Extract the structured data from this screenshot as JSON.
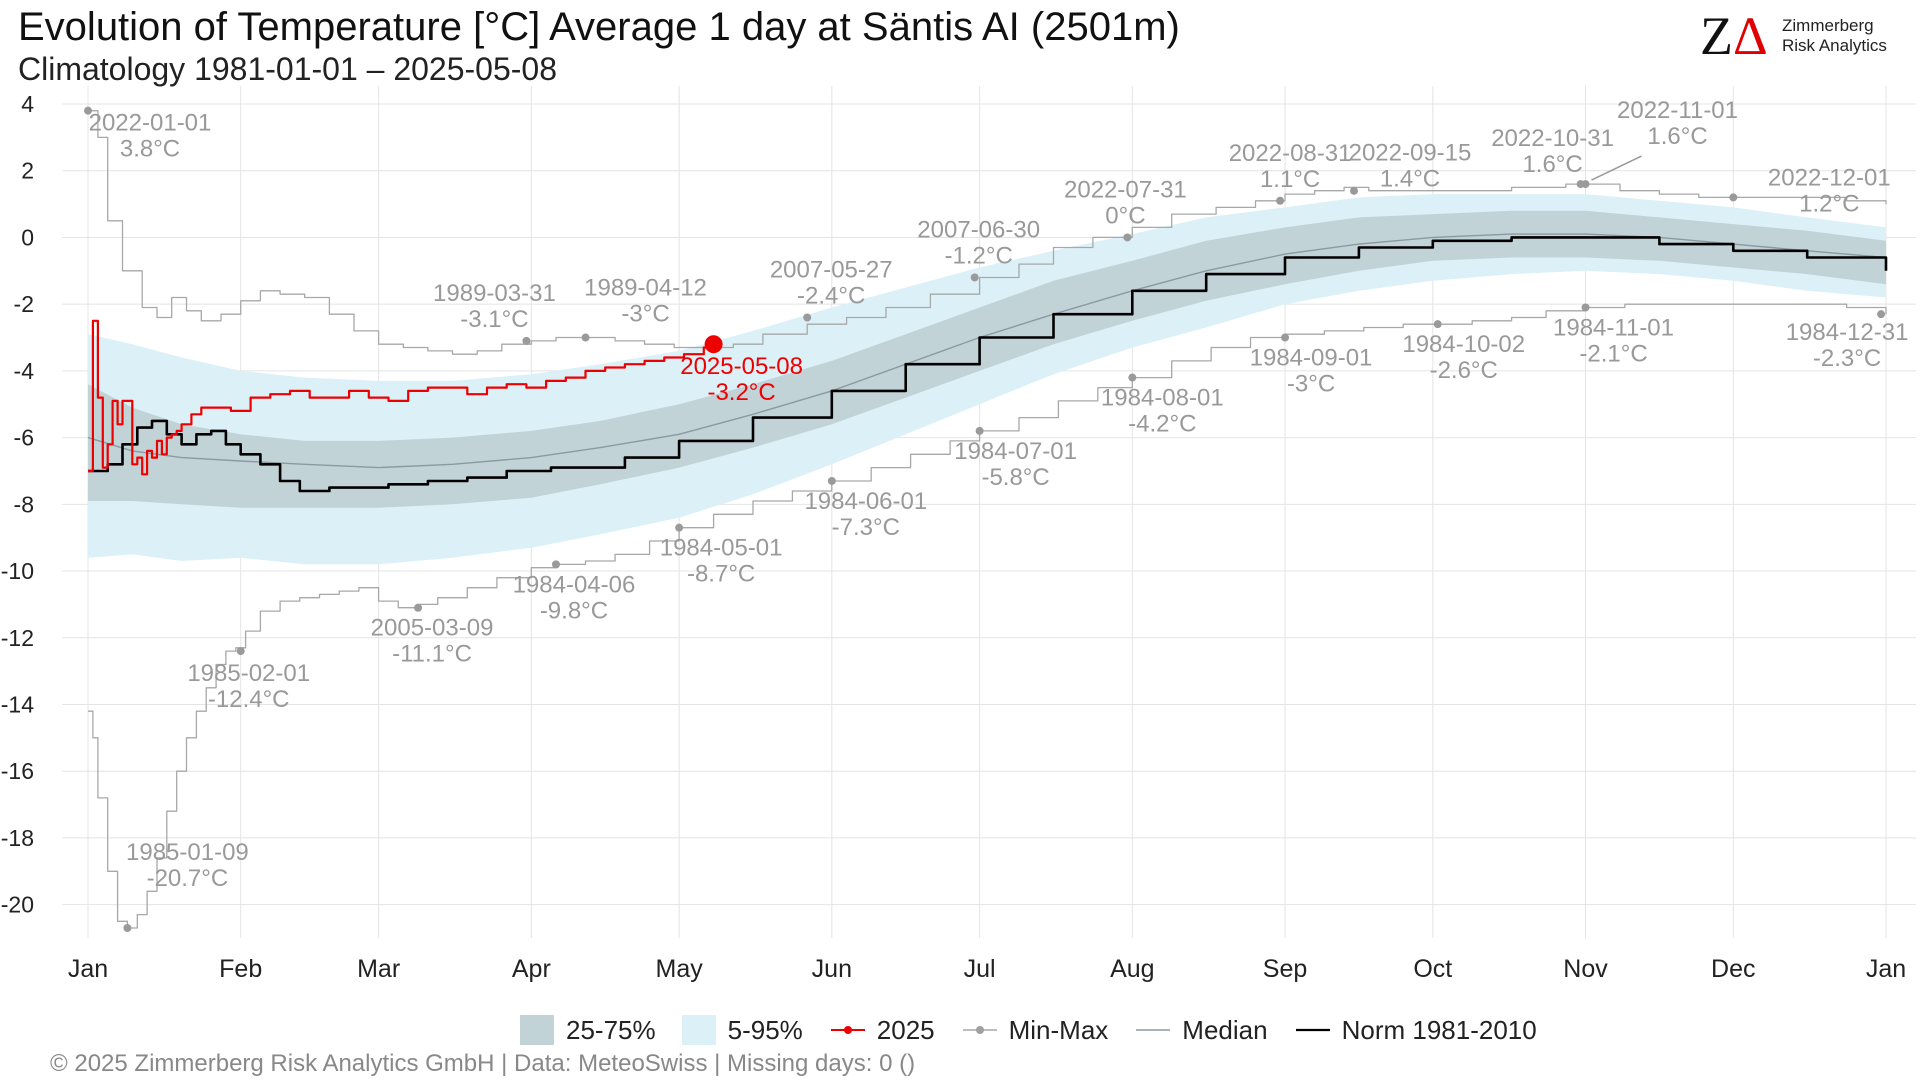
{
  "title": "Evolution of Temperature [°C] Average 1 day at Säntis  AI (2501m)",
  "subtitle": "Climatology 1981-01-01 – 2025-05-08",
  "logo": {
    "mark_z": "Z",
    "mark_delta": "Δ",
    "line1": "Zimmerberg",
    "line2": "Risk Analytics"
  },
  "footer": "©  2025 Zimmerberg Risk Analytics GmbH | Data: MeteoSwiss | Missing days: 0 ()",
  "legend": {
    "iqr": "25-75%",
    "p5_95": "5-95%",
    "current": "2025",
    "minmax": "Min-Max",
    "median": "Median",
    "norm": "Norm 1981-2010"
  },
  "colors": {
    "band_iqr": "#c2d3d8",
    "band_5_95": "#dcf0f8",
    "current": "#ee0000",
    "minmax": "#a8a8a8",
    "median": "#8a9aa0",
    "norm": "#000000",
    "grid": "#e4e4e4",
    "annotation": "#999999"
  },
  "chart_data": {
    "type": "line",
    "x_unit": "day of year",
    "xlim": [
      1,
      366
    ],
    "ylim": [
      -21,
      4.3
    ],
    "y_ticks": [
      4,
      2,
      0,
      -2,
      -4,
      -6,
      -8,
      -10,
      -12,
      -14,
      -16,
      -18,
      -20
    ],
    "x_ticks": [
      {
        "label": "Jan",
        "day": 1
      },
      {
        "label": "Feb",
        "day": 32
      },
      {
        "label": "Mar",
        "day": 60
      },
      {
        "label": "Apr",
        "day": 91
      },
      {
        "label": "May",
        "day": 121
      },
      {
        "label": "Jun",
        "day": 152
      },
      {
        "label": "Jul",
        "day": 182
      },
      {
        "label": "Aug",
        "day": 213
      },
      {
        "label": "Sep",
        "day": 244
      },
      {
        "label": "Oct",
        "day": 274
      },
      {
        "label": "Nov",
        "day": 305
      },
      {
        "label": "Dec",
        "day": 335
      },
      {
        "label": "Jan",
        "day": 366
      }
    ],
    "grid": true,
    "band_5_95": {
      "x": [
        1,
        10,
        20,
        32,
        45,
        60,
        75,
        91,
        105,
        121,
        136,
        152,
        167,
        182,
        197,
        213,
        228,
        244,
        259,
        274,
        290,
        305,
        320,
        335,
        350,
        366
      ],
      "lower": [
        -9.6,
        -9.5,
        -9.7,
        -9.6,
        -9.8,
        -9.8,
        -9.6,
        -9.3,
        -8.9,
        -8.4,
        -7.7,
        -6.8,
        -5.9,
        -5.0,
        -4.1,
        -3.3,
        -2.7,
        -2.0,
        -1.6,
        -1.3,
        -1.1,
        -1.0,
        -1.1,
        -1.3,
        -1.6,
        -1.8
      ],
      "upper": [
        -2.9,
        -3.2,
        -3.6,
        -4.0,
        -4.2,
        -4.3,
        -4.3,
        -4.1,
        -3.8,
        -3.4,
        -2.8,
        -2.1,
        -1.5,
        -0.9,
        -0.4,
        0.1,
        0.6,
        0.9,
        1.2,
        1.3,
        1.3,
        1.3,
        1.1,
        0.9,
        0.6,
        0.3
      ]
    },
    "band_iqr": {
      "x": [
        1,
        10,
        20,
        32,
        45,
        60,
        75,
        91,
        105,
        121,
        136,
        152,
        167,
        182,
        197,
        213,
        228,
        244,
        259,
        274,
        290,
        305,
        320,
        335,
        350,
        366
      ],
      "lower": [
        -7.9,
        -7.9,
        -8.0,
        -8.1,
        -8.1,
        -8.1,
        -8.0,
        -7.8,
        -7.4,
        -6.9,
        -6.3,
        -5.6,
        -4.8,
        -4.0,
        -3.2,
        -2.5,
        -1.9,
        -1.4,
        -1.0,
        -0.7,
        -0.6,
        -0.6,
        -0.7,
        -0.9,
        -1.1,
        -1.4
      ],
      "upper": [
        -4.4,
        -5.1,
        -5.6,
        -5.9,
        -6.1,
        -6.1,
        -6.0,
        -5.8,
        -5.5,
        -5.0,
        -4.4,
        -3.7,
        -2.9,
        -2.1,
        -1.3,
        -0.7,
        -0.1,
        0.3,
        0.6,
        0.7,
        0.8,
        0.8,
        0.6,
        0.4,
        0.2,
        -0.1
      ]
    },
    "series": [
      {
        "name": "Median",
        "x": [
          1,
          10,
          20,
          32,
          45,
          60,
          75,
          91,
          105,
          121,
          136,
          152,
          167,
          182,
          197,
          213,
          228,
          244,
          259,
          274,
          290,
          305,
          320,
          335,
          350,
          366
        ],
        "y": [
          -6.0,
          -6.4,
          -6.6,
          -6.7,
          -6.8,
          -6.9,
          -6.8,
          -6.6,
          -6.3,
          -5.9,
          -5.3,
          -4.6,
          -3.8,
          -3.0,
          -2.3,
          -1.6,
          -1.0,
          -0.5,
          -0.2,
          0.0,
          0.1,
          0.1,
          0.0,
          -0.2,
          -0.4,
          -0.6
        ]
      },
      {
        "name": "Norm 1981-2010",
        "x": [
          1,
          5,
          8,
          11,
          14,
          17,
          20,
          23,
          26,
          29,
          32,
          36,
          40,
          44,
          50,
          56,
          62,
          70,
          78,
          86,
          95,
          102,
          110,
          121,
          136,
          152,
          167,
          182,
          197,
          213,
          228,
          244,
          259,
          274,
          290,
          305,
          320,
          335,
          350,
          366
        ],
        "y": [
          -7.0,
          -6.8,
          -6.2,
          -5.7,
          -5.5,
          -5.9,
          -6.2,
          -5.9,
          -5.8,
          -6.2,
          -6.5,
          -6.8,
          -7.3,
          -7.6,
          -7.5,
          -7.5,
          -7.4,
          -7.3,
          -7.2,
          -7.0,
          -6.9,
          -6.9,
          -6.6,
          -6.1,
          -5.4,
          -4.6,
          -3.8,
          -3.0,
          -2.3,
          -1.6,
          -1.1,
          -0.6,
          -0.3,
          -0.1,
          0.0,
          0.0,
          -0.2,
          -0.4,
          -0.6,
          -1.0
        ]
      },
      {
        "name": "2025",
        "x": [
          1,
          2,
          3,
          4,
          5,
          6,
          7,
          8,
          10,
          11,
          12,
          13,
          14,
          15,
          16,
          17,
          18,
          19,
          20,
          22,
          24,
          26,
          28,
          30,
          34,
          38,
          42,
          46,
          50,
          54,
          58,
          62,
          66,
          70,
          74,
          78,
          82,
          86,
          90,
          94,
          98,
          102,
          106,
          110,
          114,
          118,
          122,
          126,
          128
        ],
        "y": [
          -7.0,
          -2.5,
          -4.8,
          -6.9,
          -6.2,
          -4.9,
          -5.6,
          -4.9,
          -6.8,
          -6.6,
          -7.1,
          -6.4,
          -6.6,
          -6.1,
          -6.5,
          -6.0,
          -5.9,
          -5.8,
          -5.6,
          -5.3,
          -5.1,
          -5.1,
          -5.1,
          -5.2,
          -4.8,
          -4.7,
          -4.6,
          -4.8,
          -4.8,
          -4.6,
          -4.8,
          -4.9,
          -4.6,
          -4.5,
          -4.5,
          -4.7,
          -4.5,
          -4.4,
          -4.5,
          -4.3,
          -4.2,
          -4.0,
          -3.9,
          -3.8,
          -3.7,
          -3.6,
          -3.5,
          -3.3,
          -3.2
        ]
      },
      {
        "name": "Max",
        "x": [
          1,
          3,
          5,
          8,
          12,
          15,
          18,
          21,
          24,
          28,
          32,
          36,
          40,
          45,
          50,
          55,
          60,
          65,
          70,
          75,
          80,
          85,
          91,
          96,
          102,
          108,
          114,
          120,
          126,
          132,
          138,
          147,
          155,
          163,
          172,
          182,
          190,
          197,
          205,
          213,
          221,
          230,
          238,
          244,
          250,
          256,
          261,
          270,
          280,
          290,
          301,
          305,
          312,
          320,
          328,
          335,
          342,
          350,
          358,
          366
        ],
        "y": [
          3.8,
          3.0,
          0.5,
          -1.0,
          -2.1,
          -2.4,
          -1.8,
          -2.2,
          -2.5,
          -2.3,
          -1.9,
          -1.6,
          -1.7,
          -1.8,
          -2.3,
          -2.8,
          -3.2,
          -3.3,
          -3.4,
          -3.5,
          -3.4,
          -3.2,
          -3.1,
          -3.0,
          -3.0,
          -3.1,
          -3.2,
          -3.3,
          -3.3,
          -3.2,
          -2.9,
          -2.6,
          -2.4,
          -2.1,
          -1.7,
          -1.2,
          -0.8,
          -0.3,
          0.0,
          0.3,
          0.7,
          0.9,
          1.1,
          1.3,
          1.4,
          1.5,
          1.4,
          1.4,
          1.4,
          1.5,
          1.6,
          1.6,
          1.4,
          1.3,
          1.2,
          1.2,
          1.2,
          1.2,
          1.1,
          1.0
        ]
      },
      {
        "name": "Min",
        "x": [
          1,
          2,
          3,
          5,
          7,
          9,
          11,
          13,
          15,
          17,
          19,
          21,
          23,
          25,
          27,
          29,
          31,
          33,
          36,
          40,
          44,
          48,
          52,
          56,
          60,
          64,
          68,
          72,
          78,
          84,
          91,
          96,
          102,
          108,
          115,
          121,
          128,
          136,
          144,
          152,
          160,
          168,
          176,
          182,
          190,
          198,
          206,
          213,
          221,
          229,
          237,
          244,
          252,
          260,
          268,
          275,
          282,
          290,
          297,
          305,
          313,
          320,
          327,
          335,
          342,
          350,
          358,
          366
        ],
        "y": [
          -14.2,
          -15.0,
          -16.8,
          -19.0,
          -20.5,
          -20.7,
          -20.3,
          -19.6,
          -18.6,
          -17.2,
          -16.0,
          -15.0,
          -14.2,
          -13.5,
          -12.8,
          -12.4,
          -12.3,
          -11.8,
          -11.2,
          -10.9,
          -10.8,
          -10.7,
          -10.6,
          -10.5,
          -10.9,
          -11.1,
          -11.0,
          -10.8,
          -10.5,
          -10.2,
          -9.9,
          -9.8,
          -9.7,
          -9.5,
          -9.1,
          -8.7,
          -8.3,
          -7.9,
          -7.6,
          -7.3,
          -6.9,
          -6.5,
          -6.1,
          -5.8,
          -5.4,
          -4.9,
          -4.5,
          -4.2,
          -3.7,
          -3.3,
          -3.0,
          -2.9,
          -2.8,
          -2.7,
          -2.6,
          -2.6,
          -2.5,
          -2.4,
          -2.2,
          -2.1,
          -2.0,
          -2.0,
          -2.0,
          -2.0,
          -2.0,
          -2.0,
          -2.1,
          -2.3
        ]
      }
    ],
    "current_point": {
      "day": 128,
      "value": -3.2,
      "label_date": "2025-05-08",
      "label_value": "-3.2°C"
    },
    "extreme_points": [
      {
        "day": 1,
        "value": 3.8,
        "date": "2022-01-01",
        "text": "3.8°C",
        "dx": 62,
        "dy": 20,
        "anchor": "middle"
      },
      {
        "day": 9,
        "value": -20.7,
        "date": "1985-01-09",
        "text": "-20.7°C",
        "dx": 60,
        "dy": -68,
        "anchor": "middle"
      },
      {
        "day": 32,
        "value": -12.4,
        "date": "1985-02-01",
        "text": "-12.4°C",
        "dx": 8,
        "dy": 30,
        "anchor": "middle"
      },
      {
        "day": 68,
        "value": -11.1,
        "date": "2005-03-09",
        "text": "-11.1°C",
        "dx": 14,
        "dy": 28,
        "anchor": "middle"
      },
      {
        "day": 90,
        "value": -3.1,
        "date": "1989-03-31",
        "text": "-3.1°C",
        "dx": -32,
        "dy": -40,
        "anchor": "middle"
      },
      {
        "day": 96,
        "value": -9.8,
        "date": "1984-04-06",
        "text": "-9.8°C",
        "dx": 18,
        "dy": 28,
        "anchor": "middle"
      },
      {
        "day": 102,
        "value": -3.0,
        "date": "1989-04-12",
        "text": "-3°C",
        "dx": 60,
        "dy": -42,
        "anchor": "middle"
      },
      {
        "day": 121,
        "value": -8.7,
        "date": "1984-05-01",
        "text": "-8.7°C",
        "dx": 42,
        "dy": 28,
        "anchor": "middle"
      },
      {
        "day": 147,
        "value": -2.4,
        "date": "2007-05-27",
        "text": "-2.4°C",
        "dx": 24,
        "dy": -40,
        "anchor": "middle"
      },
      {
        "day": 152,
        "value": -7.3,
        "date": "1984-06-01",
        "text": "-7.3°C",
        "dx": 34,
        "dy": 28,
        "anchor": "middle"
      },
      {
        "day": 181,
        "value": -1.2,
        "date": "2007-06-30",
        "text": "-1.2°C",
        "dx": 4,
        "dy": -40,
        "anchor": "middle"
      },
      {
        "day": 182,
        "value": -5.8,
        "date": "1984-07-01",
        "text": "-5.8°C",
        "dx": 36,
        "dy": 28,
        "anchor": "middle"
      },
      {
        "day": 212,
        "value": 0.0,
        "date": "2022-07-31",
        "text": "0°C",
        "dx": -2,
        "dy": -40,
        "anchor": "middle"
      },
      {
        "day": 213,
        "value": -4.2,
        "date": "1984-08-01",
        "text": "-4.2°C",
        "dx": 30,
        "dy": 28,
        "anchor": "middle"
      },
      {
        "day": 243,
        "value": 1.1,
        "date": "2022-08-31",
        "text": "1.1°C",
        "dx": 10,
        "dy": -40,
        "anchor": "middle"
      },
      {
        "day": 244,
        "value": -3.0,
        "date": "1984-09-01",
        "text": "-3°C",
        "dx": 26,
        "dy": 28,
        "anchor": "middle"
      },
      {
        "day": 258,
        "value": 1.4,
        "date": "2022-09-15",
        "text": "1.4°C",
        "dx": 56,
        "dy": -30,
        "anchor": "middle"
      },
      {
        "day": 275,
        "value": -2.6,
        "date": "1984-10-02",
        "text": "-2.6°C",
        "dx": 26,
        "dy": 28,
        "anchor": "middle"
      },
      {
        "day": 304,
        "value": 1.6,
        "date": "2022-10-31",
        "text": "1.6°C",
        "dx": -28,
        "dy": -38,
        "anchor": "middle"
      },
      {
        "day": 305,
        "value": 1.6,
        "date": "2022-11-01",
        "text": "1.6°C",
        "dx": 92,
        "dy": -66,
        "anchor": "middle",
        "leader": true
      },
      {
        "day": 305,
        "value": -2.1,
        "date": "1984-11-01",
        "text": "-2.1°C",
        "dx": 28,
        "dy": 28,
        "anchor": "middle"
      },
      {
        "day": 335,
        "value": 1.2,
        "date": "2022-12-01",
        "text": "1.2°C",
        "dx": 96,
        "dy": -12,
        "anchor": "middle"
      },
      {
        "day": 365,
        "value": -2.3,
        "date": "1984-12-31",
        "text": "-2.3°C",
        "dx": -34,
        "dy": 26,
        "anchor": "middle"
      }
    ]
  }
}
